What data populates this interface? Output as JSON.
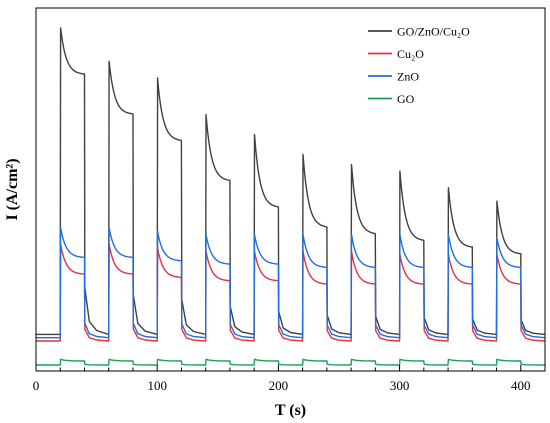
{
  "chart_data": {
    "type": "line",
    "title": "",
    "xlabel": "T (s)",
    "ylabel": "I (A/cm²)",
    "xlim": [
      0,
      420
    ],
    "x_ticks": [
      0,
      100,
      200,
      300,
      400
    ],
    "y_ticks_shown": false,
    "grid": false,
    "legend_position": "top-right",
    "light_on_times": [
      20,
      60,
      100,
      140,
      180,
      220,
      260,
      300,
      340,
      380
    ],
    "light_off_times": [
      40,
      80,
      120,
      160,
      200,
      240,
      280,
      320,
      360,
      400
    ],
    "series": [
      {
        "name": "GO/ZnO/Cu₂O",
        "color": "#404040",
        "dark_level": 2,
        "peak_values": [
          94,
          84,
          79,
          68,
          62,
          56,
          53,
          51,
          46,
          42
        ],
        "end_values": [
          80,
          68,
          60,
          48,
          40,
          34,
          32,
          30,
          28,
          26
        ]
      },
      {
        "name": "Cu₂O",
        "color": "#e8303a",
        "dark_level": 0,
        "peak_values": [
          29,
          29,
          28,
          27,
          27,
          27,
          27,
          26,
          26,
          26
        ],
        "end_values": [
          20,
          20,
          19,
          18,
          18,
          17,
          17,
          17,
          17,
          17
        ]
      },
      {
        "name": "ZnO",
        "color": "#1f6fe0",
        "dark_level": 1,
        "peak_values": [
          34,
          34,
          33,
          32,
          32,
          32,
          32,
          32,
          32,
          31
        ],
        "end_values": [
          25,
          25,
          24,
          23,
          23,
          22,
          22,
          22,
          22,
          22
        ]
      },
      {
        "name": "GO",
        "color": "#1aa155",
        "dark_level": -7.2,
        "peak_values": [
          -5.5,
          -5.5,
          -5.5,
          -5.5,
          -5.5,
          -5.5,
          -5.5,
          -5.5,
          -5.5,
          -5.5
        ],
        "end_values": [
          -6,
          -6,
          -6,
          -6,
          -6,
          -6,
          -6,
          -6,
          -6,
          -6
        ]
      }
    ]
  }
}
